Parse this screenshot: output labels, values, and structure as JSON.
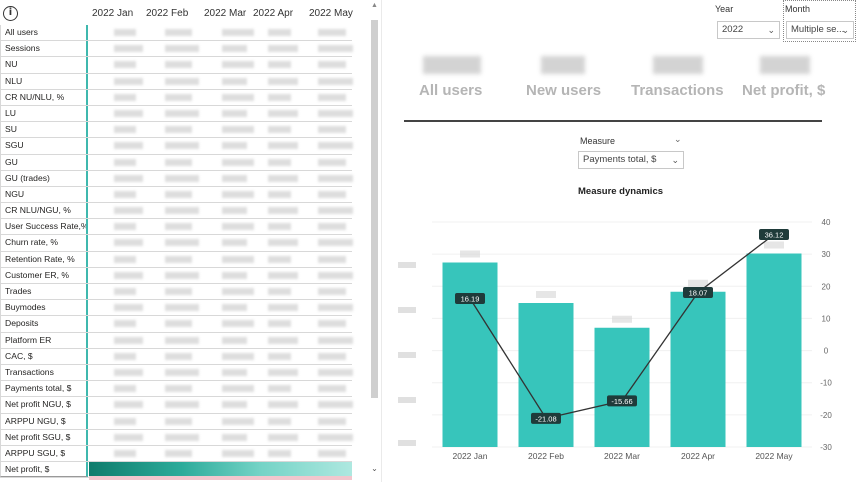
{
  "matrix": {
    "info_icon": "info-icon",
    "columns": [
      "2022 Jan",
      "2022 Feb",
      "2022 Mar",
      "2022 Apr",
      "2022 May"
    ],
    "rows": [
      "All users",
      "Sessions",
      "NU",
      "NLU",
      "CR NU/NLU, %",
      "LU",
      "SU",
      "SGU",
      "GU",
      "GU (trades)",
      "NGU",
      "CR NLU/NGU, %",
      "User Success Rate,%",
      "Churn rate, %",
      "Retention Rate, %",
      "Customer ER, %",
      "Trades",
      "Buymodes",
      "Deposits",
      "Platform ER",
      "CAC, $",
      "Transactions",
      "Payments total, $",
      "Net profit NGU, $",
      "ARPPU NGU, $",
      "Net profit SGU, $",
      "ARPPU SGU, $",
      "Net profit, $"
    ]
  },
  "filters": {
    "year_label": "Year",
    "year_value": "2022",
    "month_label": "Month",
    "month_value": "Multiple se..."
  },
  "kpis": [
    "All users",
    "New users",
    "Transactions",
    "Net profit, $"
  ],
  "measure": {
    "label": "Measure",
    "value": "Payments total, $"
  },
  "chart_data": {
    "type": "bar",
    "title": "Measure dynamics",
    "categories": [
      "2022 Jan",
      "2022 Feb",
      "2022 Mar",
      "2022 Apr",
      "2022 May"
    ],
    "series": [
      {
        "type": "bar",
        "values": [
          0.82,
          0.64,
          0.53,
          0.69,
          0.86
        ]
      },
      {
        "type": "line",
        "values": [
          16.19,
          -21.08,
          -15.66,
          18.07,
          36.12
        ],
        "labels": [
          "16.19",
          "-21.08",
          "-15.66",
          "18.07",
          "36.12"
        ]
      }
    ],
    "y2_ticks": [
      "40",
      "30",
      "20",
      "10",
      "0",
      "-10",
      "-20",
      "-30"
    ],
    "y2lim": [
      -30,
      40
    ],
    "colors": {
      "bar": "#37c5bb",
      "line": "#333333",
      "label_bg": "#1f3b3a"
    }
  }
}
